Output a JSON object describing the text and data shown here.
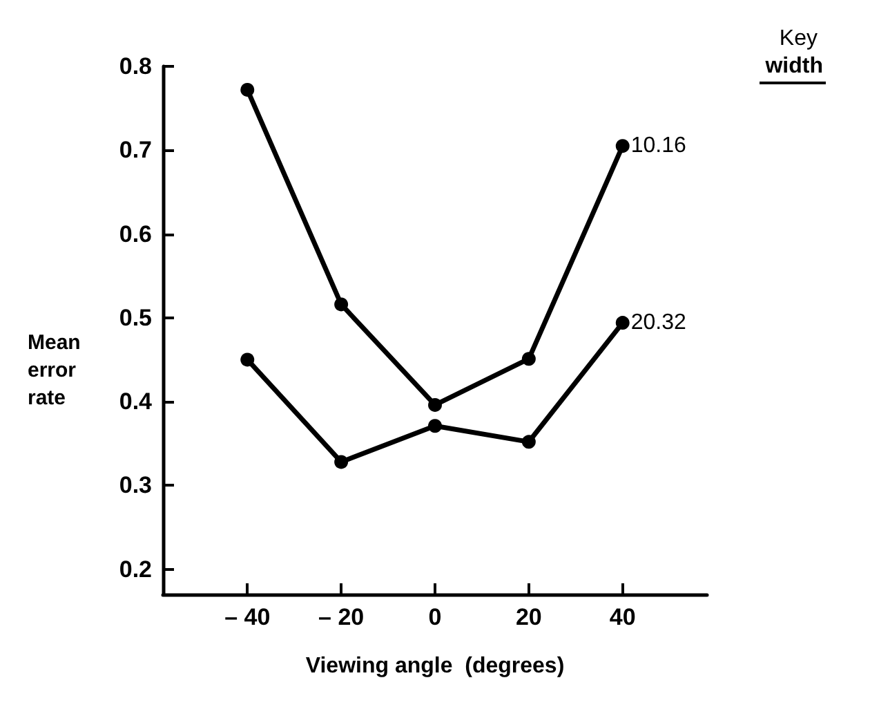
{
  "chart_data": {
    "type": "line",
    "xlabel": "Viewing angle  (degrees)",
    "ylabel": "Mean error rate",
    "legend_title": "Key width",
    "x": [
      -40,
      -20,
      0,
      20,
      40
    ],
    "series": [
      {
        "name": "10.16",
        "color": "#000000",
        "values": [
          0.772,
          0.516,
          0.396,
          0.451,
          0.705
        ]
      },
      {
        "name": "20.32",
        "color": "#000000",
        "values": [
          0.45,
          0.328,
          0.371,
          0.352,
          0.494
        ]
      }
    ],
    "xlim": [
      -58,
      58
    ],
    "xticks": [
      {
        "value": -40,
        "label": "– 40"
      },
      {
        "value": -20,
        "label": "– 20"
      },
      0,
      20,
      40
    ],
    "ylim": [
      0.17,
      0.8
    ],
    "yticks": [
      0.2,
      0.3,
      0.4,
      0.5,
      0.6,
      0.7,
      0.8
    ],
    "grid": false,
    "legend": false,
    "marker": "circle",
    "line_style": "solid"
  }
}
